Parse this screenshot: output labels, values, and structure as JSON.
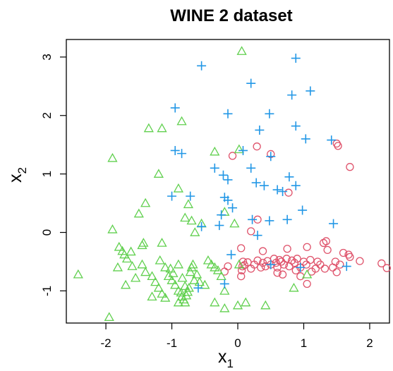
{
  "chart_data": {
    "type": "scatter",
    "title": "WINE 2 dataset",
    "xlabel": "x",
    "xlabel_subscript": "1",
    "ylabel": "x",
    "ylabel_subscript": "2",
    "xlim": [
      -2.6,
      2.3
    ],
    "ylim": [
      -1.55,
      3.3
    ],
    "xticks": [
      -2,
      -1,
      0,
      1,
      2
    ],
    "xtick_labels": [
      "-2",
      "-1",
      "0",
      "1",
      "2"
    ],
    "yticks": [
      -1,
      0,
      1,
      2,
      3
    ],
    "ytick_labels": [
      "-1",
      "0",
      "1",
      "2",
      "3"
    ],
    "grid": false,
    "series": [
      {
        "marker": "circle",
        "color": "#DF536B",
        "points": [
          [
            -0.08,
            1.31
          ],
          [
            0.29,
            1.47
          ],
          [
            0.5,
            1.34
          ],
          [
            1.5,
            1.52
          ],
          [
            1.52,
            1.48
          ],
          [
            1.7,
            1.12
          ],
          [
            0.77,
            0.68
          ],
          [
            0.3,
            0.22
          ],
          [
            0.2,
            0.02
          ],
          [
            0.05,
            -0.27
          ],
          [
            0.38,
            -0.32
          ],
          [
            0.75,
            -0.28
          ],
          [
            1.05,
            -0.25
          ],
          [
            1.3,
            -0.18
          ],
          [
            1.34,
            -0.15
          ],
          [
            1.36,
            -0.3
          ],
          [
            1.6,
            -0.35
          ],
          [
            1.68,
            -0.38
          ],
          [
            1.7,
            -0.42
          ],
          [
            2.18,
            -0.53
          ],
          [
            2.26,
            -0.61
          ],
          [
            1.85,
            -0.49
          ],
          [
            1.55,
            -0.55
          ],
          [
            1.48,
            -0.5
          ],
          [
            1.44,
            -0.6
          ],
          [
            1.25,
            -0.55
          ],
          [
            1.21,
            -0.5
          ],
          [
            1.18,
            -0.62
          ],
          [
            1.1,
            -0.47
          ],
          [
            1.04,
            -0.55
          ],
          [
            1.0,
            -0.5
          ],
          [
            0.95,
            -0.6
          ],
          [
            0.9,
            -0.45
          ],
          [
            0.86,
            -0.52
          ],
          [
            0.82,
            -0.48
          ],
          [
            0.78,
            -0.58
          ],
          [
            0.74,
            -0.45
          ],
          [
            0.7,
            -0.55
          ],
          [
            0.66,
            -0.5
          ],
          [
            0.63,
            -0.47
          ],
          [
            0.6,
            -0.6
          ],
          [
            0.58,
            -0.52
          ],
          [
            0.55,
            -0.45
          ],
          [
            0.5,
            -0.55
          ],
          [
            0.45,
            -0.49
          ],
          [
            0.42,
            -0.58
          ],
          [
            0.38,
            -0.52
          ],
          [
            0.35,
            -0.6
          ],
          [
            0.3,
            -0.48
          ],
          [
            0.25,
            -0.55
          ],
          [
            0.2,
            -0.62
          ],
          [
            0.08,
            -0.5
          ],
          [
            0.07,
            -0.58
          ],
          [
            0.06,
            -0.65
          ],
          [
            0.05,
            -0.75
          ],
          [
            0.1,
            -0.56
          ],
          [
            0.15,
            -0.51
          ],
          [
            -0.15,
            -0.58
          ],
          [
            -0.2,
            -0.67
          ],
          [
            0.6,
            -0.69
          ],
          [
            0.68,
            -0.72
          ],
          [
            0.95,
            -0.75
          ],
          [
            1.05,
            -0.88
          ],
          [
            1.32,
            -0.62
          ],
          [
            1.5,
            -0.68
          ],
          [
            0.88,
            -0.65
          ],
          [
            1.12,
            -0.67
          ]
        ]
      },
      {
        "marker": "triangle",
        "color": "#61D04F",
        "points": [
          [
            0.06,
            3.1
          ],
          [
            -1.15,
            1.78
          ],
          [
            -1.35,
            1.78
          ],
          [
            -0.85,
            1.9
          ],
          [
            -1.9,
            1.27
          ],
          [
            -1.2,
            1.0
          ],
          [
            -0.35,
            1.38
          ],
          [
            -0.9,
            0.75
          ],
          [
            -1.4,
            0.5
          ],
          [
            -1.5,
            0.32
          ],
          [
            -0.75,
            0.48
          ],
          [
            -0.8,
            0.25
          ],
          [
            -0.7,
            0.2
          ],
          [
            -0.55,
            0.15
          ],
          [
            -0.65,
            0.0
          ],
          [
            -1.15,
            -0.18
          ],
          [
            -1.45,
            -0.22
          ],
          [
            -1.9,
            0.05
          ],
          [
            -1.8,
            -0.25
          ],
          [
            -1.75,
            -0.32
          ],
          [
            -1.72,
            -0.38
          ],
          [
            -1.68,
            -0.45
          ],
          [
            -1.6,
            -0.58
          ],
          [
            -1.45,
            -0.55
          ],
          [
            -1.4,
            -0.68
          ],
          [
            -1.3,
            -0.75
          ],
          [
            -1.25,
            -0.85
          ],
          [
            -1.2,
            -0.95
          ],
          [
            -1.15,
            -1.05
          ],
          [
            -1.1,
            -1.12
          ],
          [
            -1.05,
            -0.75
          ],
          [
            -1.0,
            -0.82
          ],
          [
            -0.95,
            -0.9
          ],
          [
            -0.9,
            -1.0
          ],
          [
            -0.85,
            -1.1
          ],
          [
            -0.82,
            -1.15
          ],
          [
            -0.8,
            -1.2
          ],
          [
            -0.78,
            -1.08
          ],
          [
            -0.76,
            -1.02
          ],
          [
            -0.74,
            -0.95
          ],
          [
            -0.72,
            -0.68
          ],
          [
            -0.7,
            -0.6
          ],
          [
            -0.68,
            -0.55
          ],
          [
            -0.62,
            -0.72
          ],
          [
            -0.58,
            -0.85
          ],
          [
            -0.5,
            -0.9
          ],
          [
            -0.45,
            -0.48
          ],
          [
            -0.4,
            -0.55
          ],
          [
            -0.35,
            -0.6
          ],
          [
            -0.3,
            -0.65
          ],
          [
            -0.25,
            -0.75
          ],
          [
            -0.2,
            -1.0
          ],
          [
            -0.2,
            -1.3
          ],
          [
            -0.35,
            -1.2
          ],
          [
            0.0,
            -1.25
          ],
          [
            0.12,
            -1.2
          ],
          [
            0.42,
            -1.25
          ],
          [
            -1.95,
            -1.45
          ],
          [
            -2.42,
            -0.72
          ],
          [
            -1.3,
            -1.1
          ],
          [
            -1.1,
            -0.6
          ],
          [
            -1.55,
            -0.78
          ],
          [
            -1.7,
            -0.9
          ],
          [
            -1.82,
            -0.6
          ],
          [
            0.85,
            -0.95
          ],
          [
            1.05,
            -0.72
          ],
          [
            0.02,
            -0.55
          ],
          [
            -0.05,
            0.15
          ],
          [
            -0.2,
            0.35
          ],
          [
            0.02,
            1.42
          ],
          [
            -1.62,
            -0.33
          ],
          [
            -1.43,
            -0.18
          ],
          [
            -1.18,
            -0.48
          ],
          [
            -0.9,
            -0.55
          ],
          [
            -0.98,
            -0.7
          ],
          [
            -0.84,
            -0.78
          ],
          [
            -0.66,
            -0.82
          ],
          [
            -1.02,
            -0.62
          ],
          [
            -0.8,
            -0.92
          ],
          [
            -0.86,
            -1.03
          ],
          [
            -0.9,
            -1.2
          ]
        ]
      },
      {
        "marker": "plus",
        "color": "#2297E6",
        "points": [
          [
            0.88,
            2.98
          ],
          [
            -0.55,
            2.85
          ],
          [
            0.2,
            2.55
          ],
          [
            1.1,
            2.42
          ],
          [
            0.82,
            2.35
          ],
          [
            -0.95,
            2.13
          ],
          [
            -0.15,
            2.03
          ],
          [
            0.48,
            2.03
          ],
          [
            0.88,
            1.82
          ],
          [
            0.33,
            1.75
          ],
          [
            1.03,
            1.6
          ],
          [
            1.42,
            1.58
          ],
          [
            0.08,
            1.4
          ],
          [
            -0.95,
            1.4
          ],
          [
            -0.85,
            1.35
          ],
          [
            0.5,
            1.3
          ],
          [
            -0.35,
            1.1
          ],
          [
            0.2,
            1.1
          ],
          [
            -0.22,
            0.98
          ],
          [
            -0.15,
            0.9
          ],
          [
            0.78,
            0.95
          ],
          [
            0.28,
            0.85
          ],
          [
            0.4,
            0.8
          ],
          [
            0.6,
            0.73
          ],
          [
            0.68,
            0.7
          ],
          [
            0.88,
            0.8
          ],
          [
            -1.0,
            0.62
          ],
          [
            -0.72,
            0.62
          ],
          [
            -0.2,
            0.6
          ],
          [
            -0.15,
            0.55
          ],
          [
            -0.08,
            0.42
          ],
          [
            -0.25,
            0.3
          ],
          [
            -0.28,
            0.12
          ],
          [
            -0.55,
            0.1
          ],
          [
            0.22,
            0.22
          ],
          [
            0.48,
            0.2
          ],
          [
            0.75,
            0.22
          ],
          [
            1.45,
            0.15
          ],
          [
            0.98,
            0.38
          ],
          [
            0.3,
            -0.05
          ],
          [
            -0.1,
            -0.38
          ],
          [
            -0.2,
            -0.88
          ],
          [
            -0.6,
            -0.95
          ],
          [
            1.65,
            -0.58
          ],
          [
            0.95,
            -0.6
          ],
          [
            0.5,
            -0.55
          ]
        ]
      }
    ]
  }
}
